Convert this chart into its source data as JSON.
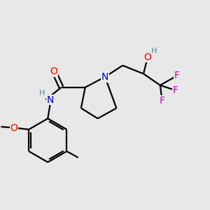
{
  "background_color": "#e8e8e8",
  "atom_colors": {
    "N": "#0000CC",
    "O": "#FF0000",
    "F": "#CC00AA",
    "H_gray": "#4A8A8A",
    "C": "#000000"
  },
  "bond_color": "#000000",
  "bond_width": 1.6,
  "figsize": [
    3.0,
    3.0
  ],
  "dpi": 100
}
